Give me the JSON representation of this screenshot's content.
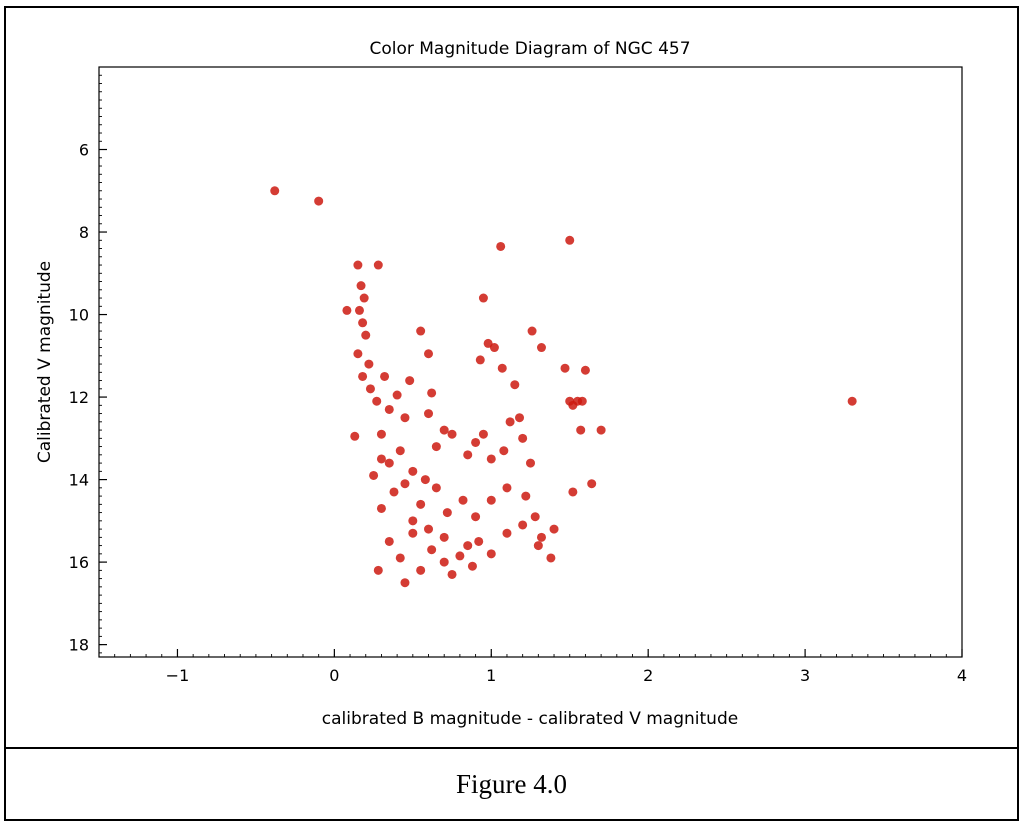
{
  "chart_data": {
    "type": "scatter",
    "title": "Color Magnitude Diagram of NGC 457",
    "xlabel": "calibrated B magnitude - calibrated V magnitude",
    "ylabel": "Calibrated V magnitude",
    "xlim": [
      -1.5,
      4
    ],
    "ylim": [
      4,
      18.3
    ],
    "y_inverted": true,
    "xticks": [
      "-1",
      "0",
      "1",
      "2",
      "3",
      "4"
    ],
    "yticks": [
      "6",
      "8",
      "10",
      "12",
      "14",
      "16",
      "18"
    ],
    "grid": false,
    "legend": "none",
    "marker_color": "#cc1a10",
    "points": [
      [
        -0.38,
        7.0
      ],
      [
        -0.1,
        7.25
      ],
      [
        1.06,
        8.35
      ],
      [
        1.5,
        8.2
      ],
      [
        3.3,
        12.1
      ],
      [
        0.95,
        9.6
      ],
      [
        1.26,
        10.4
      ],
      [
        1.32,
        10.8
      ],
      [
        0.55,
        10.4
      ],
      [
        0.6,
        10.95
      ],
      [
        1.02,
        10.8
      ],
      [
        0.98,
        10.7
      ],
      [
        0.93,
        11.1
      ],
      [
        1.07,
        11.3
      ],
      [
        1.15,
        11.7
      ],
      [
        1.47,
        11.3
      ],
      [
        1.6,
        11.35
      ],
      [
        1.58,
        12.1
      ],
      [
        1.55,
        12.1
      ],
      [
        1.5,
        12.1
      ],
      [
        1.52,
        12.2
      ],
      [
        1.7,
        12.8
      ],
      [
        1.57,
        12.8
      ],
      [
        1.64,
        14.1
      ],
      [
        1.52,
        14.3
      ],
      [
        1.4,
        15.2
      ],
      [
        1.38,
        15.9
      ],
      [
        1.32,
        15.4
      ],
      [
        1.28,
        14.9
      ],
      [
        1.22,
        14.4
      ],
      [
        0.08,
        9.9
      ],
      [
        0.28,
        8.8
      ],
      [
        0.15,
        8.8
      ],
      [
        0.17,
        9.3
      ],
      [
        0.19,
        9.6
      ],
      [
        0.16,
        9.9
      ],
      [
        0.18,
        10.2
      ],
      [
        0.2,
        10.5
      ],
      [
        0.15,
        10.95
      ],
      [
        0.22,
        11.2
      ],
      [
        0.18,
        11.5
      ],
      [
        0.23,
        11.8
      ],
      [
        0.27,
        12.1
      ],
      [
        0.32,
        11.5
      ],
      [
        0.35,
        12.3
      ],
      [
        0.13,
        12.95
      ],
      [
        0.3,
        12.9
      ],
      [
        0.3,
        13.5
      ],
      [
        0.4,
        11.95
      ],
      [
        0.45,
        12.5
      ],
      [
        0.48,
        11.6
      ],
      [
        0.62,
        11.9
      ],
      [
        0.6,
        12.4
      ],
      [
        0.7,
        12.8
      ],
      [
        0.65,
        13.2
      ],
      [
        0.75,
        12.9
      ],
      [
        0.85,
        13.4
      ],
      [
        0.9,
        13.1
      ],
      [
        0.95,
        12.9
      ],
      [
        1.0,
        13.5
      ],
      [
        1.08,
        13.3
      ],
      [
        1.12,
        12.6
      ],
      [
        1.18,
        12.5
      ],
      [
        1.2,
        13.0
      ],
      [
        1.25,
        13.6
      ],
      [
        0.28,
        16.2
      ],
      [
        0.45,
        16.5
      ],
      [
        0.55,
        16.2
      ],
      [
        0.35,
        15.5
      ],
      [
        0.42,
        15.9
      ],
      [
        0.5,
        15.3
      ],
      [
        0.62,
        15.7
      ],
      [
        0.7,
        16.0
      ],
      [
        0.75,
        16.3
      ],
      [
        0.8,
        15.85
      ],
      [
        0.88,
        16.1
      ],
      [
        0.92,
        15.5
      ],
      [
        1.0,
        15.8
      ],
      [
        1.1,
        15.3
      ],
      [
        1.2,
        15.1
      ],
      [
        1.3,
        15.6
      ],
      [
        0.3,
        14.7
      ],
      [
        0.38,
        14.3
      ],
      [
        0.45,
        14.1
      ],
      [
        0.55,
        14.6
      ],
      [
        0.65,
        14.2
      ],
      [
        0.72,
        14.8
      ],
      [
        0.82,
        14.5
      ],
      [
        0.9,
        14.9
      ],
      [
        1.0,
        14.5
      ],
      [
        1.1,
        14.2
      ],
      [
        0.5,
        15.0
      ],
      [
        0.6,
        15.2
      ],
      [
        0.7,
        15.4
      ],
      [
        0.85,
        15.6
      ],
      [
        0.25,
        13.9
      ],
      [
        0.35,
        13.6
      ],
      [
        0.42,
        13.3
      ],
      [
        0.5,
        13.8
      ],
      [
        0.58,
        14.0
      ]
    ]
  },
  "caption": "Figure 4.0"
}
